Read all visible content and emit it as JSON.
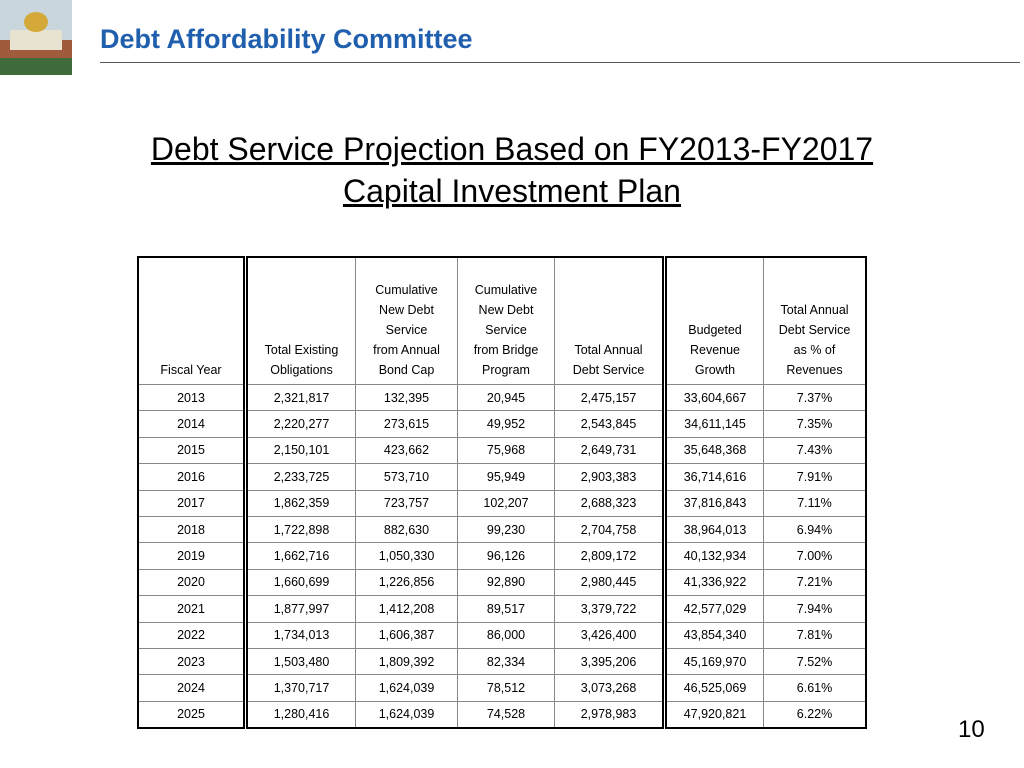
{
  "header": {
    "title": "Debt Affordability Committee"
  },
  "slide_title": [
    "Debt Service Projection Based on FY2013-FY2017",
    "Capital Investment Plan"
  ],
  "table": {
    "columns": [
      [
        "Fiscal Year"
      ],
      [
        "Total Existing",
        "Obligations"
      ],
      [
        "Cumulative",
        "New Debt",
        "Service",
        "from Annual",
        "Bond Cap"
      ],
      [
        "Cumulative",
        "New Debt",
        "Service",
        "from Bridge",
        "Program"
      ],
      [
        "Total Annual",
        "Debt Service"
      ],
      [
        "Budgeted",
        "Revenue",
        "Growth"
      ],
      [
        "Total Annual",
        "Debt Service",
        "as % of",
        "Revenues"
      ]
    ],
    "rows": [
      [
        "2013",
        "2,321,817",
        "132,395",
        "20,945",
        "2,475,157",
        "33,604,667",
        "7.37%"
      ],
      [
        "2014",
        "2,220,277",
        "273,615",
        "49,952",
        "2,543,845",
        "34,611,145",
        "7.35%"
      ],
      [
        "2015",
        "2,150,101",
        "423,662",
        "75,968",
        "2,649,731",
        "35,648,368",
        "7.43%"
      ],
      [
        "2016",
        "2,233,725",
        "573,710",
        "95,949",
        "2,903,383",
        "36,714,616",
        "7.91%"
      ],
      [
        "2017",
        "1,862,359",
        "723,757",
        "102,207",
        "2,688,323",
        "37,816,843",
        "7.11%"
      ],
      [
        "2018",
        "1,722,898",
        "882,630",
        "99,230",
        "2,704,758",
        "38,964,013",
        "6.94%"
      ],
      [
        "2019",
        "1,662,716",
        "1,050,330",
        "96,126",
        "2,809,172",
        "40,132,934",
        "7.00%"
      ],
      [
        "2020",
        "1,660,699",
        "1,226,856",
        "92,890",
        "2,980,445",
        "41,336,922",
        "7.21%"
      ],
      [
        "2021",
        "1,877,997",
        "1,412,208",
        "89,517",
        "3,379,722",
        "42,577,029",
        "7.94%"
      ],
      [
        "2022",
        "1,734,013",
        "1,606,387",
        "86,000",
        "3,426,400",
        "43,854,340",
        "7.81%"
      ],
      [
        "2023",
        "1,503,480",
        "1,809,392",
        "82,334",
        "3,395,206",
        "45,169,970",
        "7.52%"
      ],
      [
        "2024",
        "1,370,717",
        "1,624,039",
        "78,512",
        "3,073,268",
        "46,525,069",
        "6.61%"
      ],
      [
        "2025",
        "1,280,416",
        "1,624,039",
        "74,528",
        "2,978,983",
        "47,920,821",
        "6.22%"
      ]
    ]
  },
  "page_number": "10"
}
